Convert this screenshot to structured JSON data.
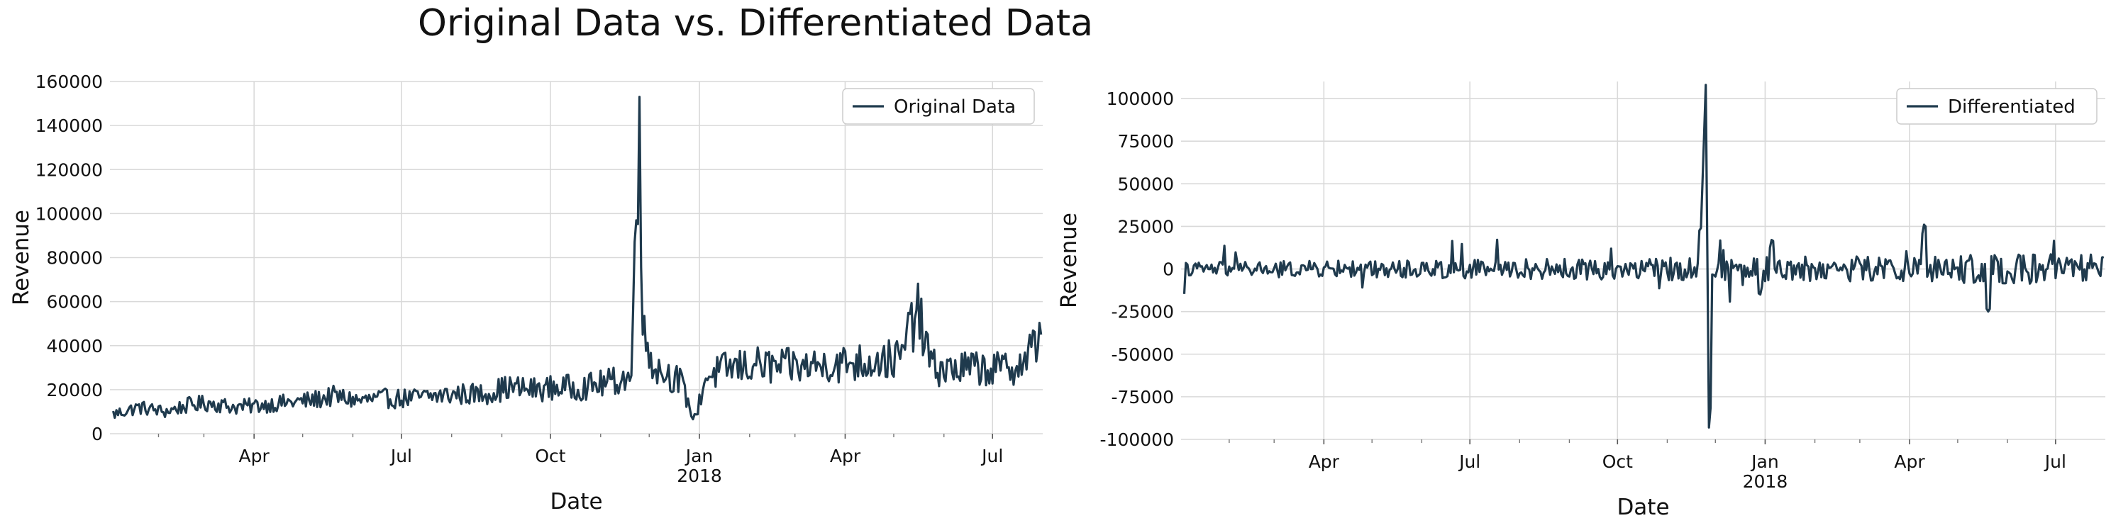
{
  "figure": {
    "title": "Original Data vs. Differentiated Data"
  },
  "chart_data": [
    {
      "type": "line",
      "title": "",
      "xlabel": "Date",
      "ylabel": "Revenue",
      "x_range": [
        "2017-01-02",
        "2018-08-01"
      ],
      "ylim": [
        0,
        160000
      ],
      "yticks": [
        0,
        20000,
        40000,
        60000,
        80000,
        100000,
        120000,
        140000,
        160000
      ],
      "xticks": [
        {
          "date": "2017-04-01",
          "label": "Apr",
          "sublabel": ""
        },
        {
          "date": "2017-07-01",
          "label": "Jul",
          "sublabel": ""
        },
        {
          "date": "2017-10-01",
          "label": "Oct",
          "sublabel": ""
        },
        {
          "date": "2018-01-01",
          "label": "Jan",
          "sublabel": "2018"
        },
        {
          "date": "2018-04-01",
          "label": "Apr",
          "sublabel": ""
        },
        {
          "date": "2018-07-01",
          "label": "Jul",
          "sublabel": ""
        }
      ],
      "minor_xticks": [
        "2017-02-01",
        "2017-03-01",
        "2017-05-01",
        "2017-06-01",
        "2017-08-01",
        "2017-09-01",
        "2017-11-01",
        "2017-12-01",
        "2018-02-01",
        "2018-03-01",
        "2018-05-01",
        "2018-06-01"
      ],
      "grid": true,
      "legend_position": "top-right",
      "series": [
        {
          "name": "Original Data",
          "color": "#1f3a4d",
          "points": [
            [
              "2017-01-05",
              9000
            ],
            [
              "2017-01-20",
              12000
            ],
            [
              "2017-02-05",
              10000
            ],
            [
              "2017-02-20",
              13000
            ],
            [
              "2017-03-05",
              14000
            ],
            [
              "2017-03-20",
              12000
            ],
            [
              "2017-04-05",
              13000
            ],
            [
              "2017-04-20",
              14000
            ],
            [
              "2017-05-05",
              15000
            ],
            [
              "2017-05-20",
              17000
            ],
            [
              "2017-06-05",
              15000
            ],
            [
              "2017-06-20",
              16000
            ],
            [
              "2017-07-05",
              16000
            ],
            [
              "2017-07-20",
              17000
            ],
            [
              "2017-08-05",
              18000
            ],
            [
              "2017-08-20",
              18000
            ],
            [
              "2017-09-05",
              21000
            ],
            [
              "2017-09-20",
              20000
            ],
            [
              "2017-10-05",
              21000
            ],
            [
              "2017-10-20",
              21000
            ],
            [
              "2017-11-05",
              23000
            ],
            [
              "2017-11-20",
              26000
            ],
            [
              "2017-11-25",
              153000
            ],
            [
              "2017-11-27",
              45000
            ],
            [
              "2017-12-05",
              30000
            ],
            [
              "2017-12-20",
              24000
            ],
            [
              "2017-12-29",
              6000
            ],
            [
              "2018-01-05",
              26000
            ],
            [
              "2018-01-20",
              30000
            ],
            [
              "2018-02-05",
              31000
            ],
            [
              "2018-02-20",
              30000
            ],
            [
              "2018-03-05",
              31000
            ],
            [
              "2018-03-20",
              31000
            ],
            [
              "2018-04-05",
              32000
            ],
            [
              "2018-04-20",
              33000
            ],
            [
              "2018-05-05",
              34000
            ],
            [
              "2018-05-15",
              56000
            ],
            [
              "2018-05-25",
              30000
            ],
            [
              "2018-06-05",
              29000
            ],
            [
              "2018-06-20",
              30000
            ],
            [
              "2018-07-05",
              29000
            ],
            [
              "2018-07-20",
              32000
            ],
            [
              "2018-07-31",
              45000
            ]
          ]
        }
      ]
    },
    {
      "type": "line",
      "title": "",
      "xlabel": "Date",
      "ylabel": "Revenue",
      "x_range": [
        "2017-01-02",
        "2018-08-01"
      ],
      "ylim": [
        -100000,
        110000
      ],
      "yticks": [
        -100000,
        -75000,
        -50000,
        -25000,
        0,
        25000,
        50000,
        75000,
        100000
      ],
      "xticks": [
        {
          "date": "2017-04-01",
          "label": "Apr",
          "sublabel": ""
        },
        {
          "date": "2017-07-01",
          "label": "Jul",
          "sublabel": ""
        },
        {
          "date": "2017-10-01",
          "label": "Oct",
          "sublabel": ""
        },
        {
          "date": "2018-01-01",
          "label": "Jan",
          "sublabel": "2018"
        },
        {
          "date": "2018-04-01",
          "label": "Apr",
          "sublabel": ""
        },
        {
          "date": "2018-07-01",
          "label": "Jul",
          "sublabel": ""
        }
      ],
      "minor_xticks": [
        "2017-02-01",
        "2017-03-01",
        "2017-05-01",
        "2017-06-01",
        "2017-08-01",
        "2017-09-01",
        "2017-11-01",
        "2017-12-01",
        "2018-02-01",
        "2018-03-01",
        "2018-05-01",
        "2018-06-01"
      ],
      "grid": true,
      "legend_position": "top-right",
      "series": [
        {
          "name": "Differentiated",
          "color": "#1f3a4d",
          "points": [
            [
              "2017-01-05",
              0
            ],
            [
              "2017-02-05",
              0
            ],
            [
              "2017-03-05",
              0
            ],
            [
              "2017-04-05",
              0
            ],
            [
              "2017-05-05",
              0
            ],
            [
              "2017-06-05",
              0
            ],
            [
              "2017-07-05",
              0
            ],
            [
              "2017-08-05",
              0
            ],
            [
              "2017-09-05",
              0
            ],
            [
              "2017-10-05",
              0
            ],
            [
              "2017-11-05",
              0
            ],
            [
              "2017-11-22",
              24000
            ],
            [
              "2017-11-25",
              108000
            ],
            [
              "2017-11-27",
              -93000
            ],
            [
              "2017-12-05",
              0
            ],
            [
              "2017-12-29",
              -15000
            ],
            [
              "2018-01-05",
              17000
            ],
            [
              "2018-02-05",
              0
            ],
            [
              "2018-03-05",
              0
            ],
            [
              "2018-04-05",
              0
            ],
            [
              "2018-04-10",
              26000
            ],
            [
              "2018-05-05",
              0
            ],
            [
              "2018-05-20",
              -25000
            ],
            [
              "2018-06-05",
              0
            ],
            [
              "2018-07-05",
              0
            ],
            [
              "2018-07-31",
              7000
            ]
          ]
        }
      ]
    }
  ]
}
